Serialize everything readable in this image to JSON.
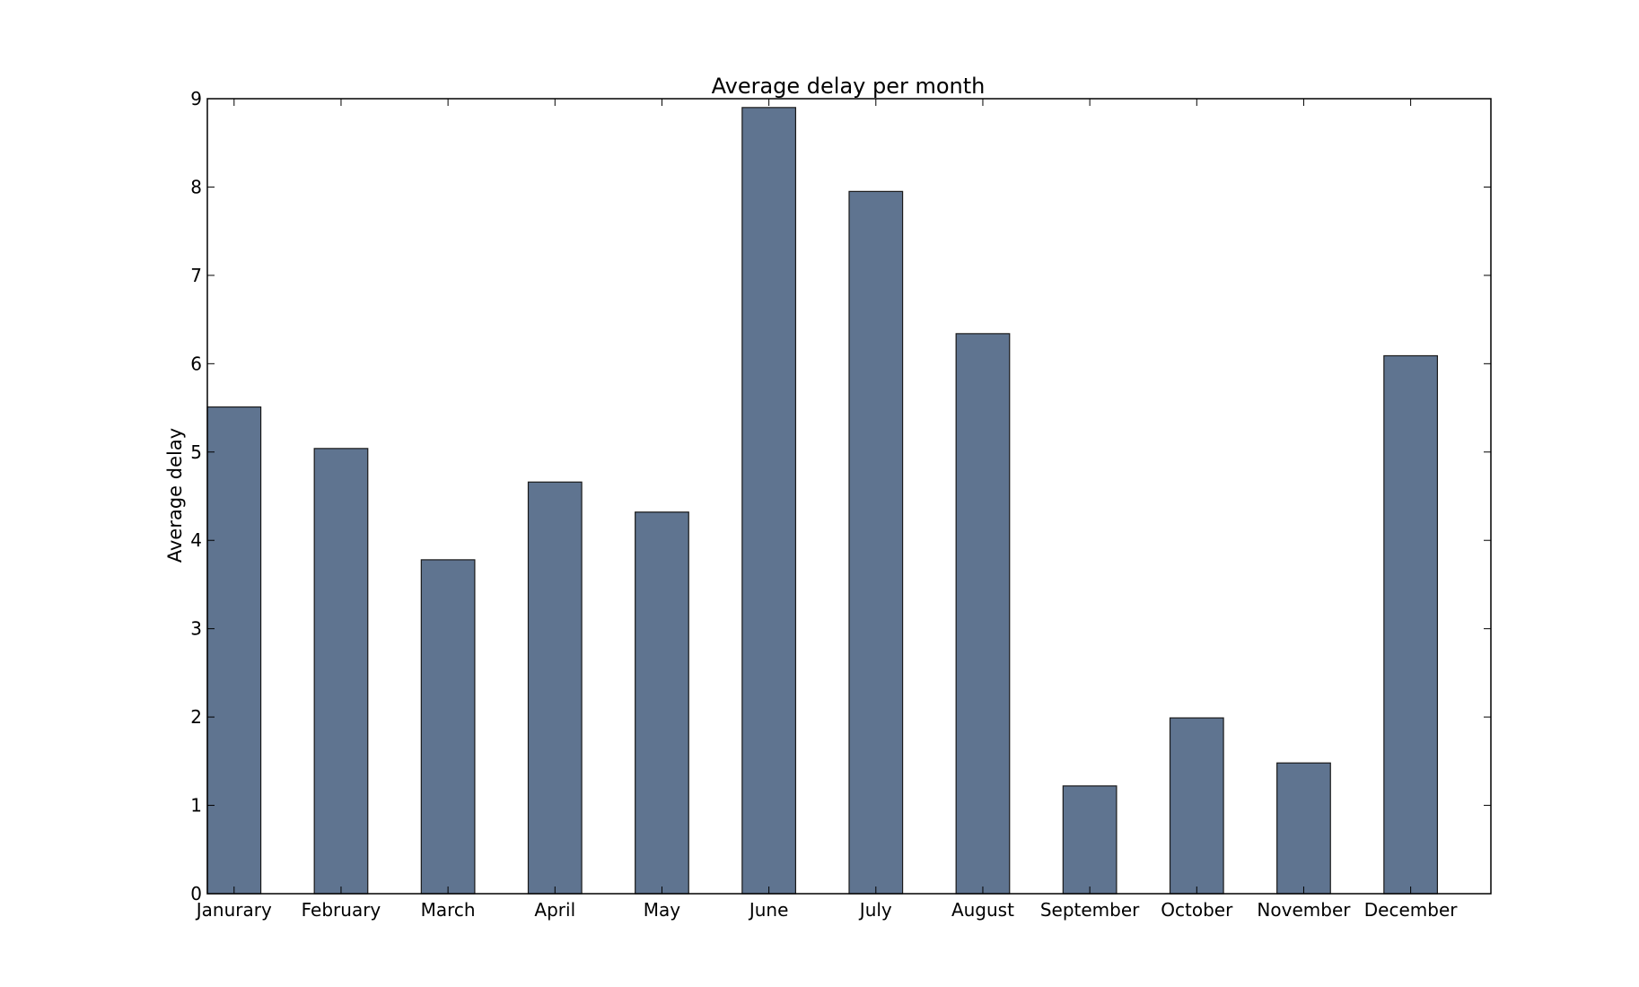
{
  "chart_data": {
    "type": "bar",
    "title": "Average delay per month",
    "xlabel": "",
    "ylabel": "Average delay",
    "categories": [
      "Janurary",
      "February",
      "March",
      "April",
      "May",
      "June",
      "July",
      "August",
      "September",
      "October",
      "November",
      "December"
    ],
    "values": [
      5.51,
      5.04,
      3.78,
      4.66,
      4.32,
      8.9,
      7.95,
      6.34,
      1.22,
      1.99,
      1.48,
      6.09
    ],
    "ylim": [
      0,
      9
    ],
    "yticks": [
      "0",
      "1",
      "2",
      "3",
      "4",
      "5",
      "6",
      "7",
      "8",
      "9"
    ],
    "grid": false,
    "legend": "none",
    "bar_color": "#5f7490",
    "edge_color": "#1a1a1a"
  }
}
